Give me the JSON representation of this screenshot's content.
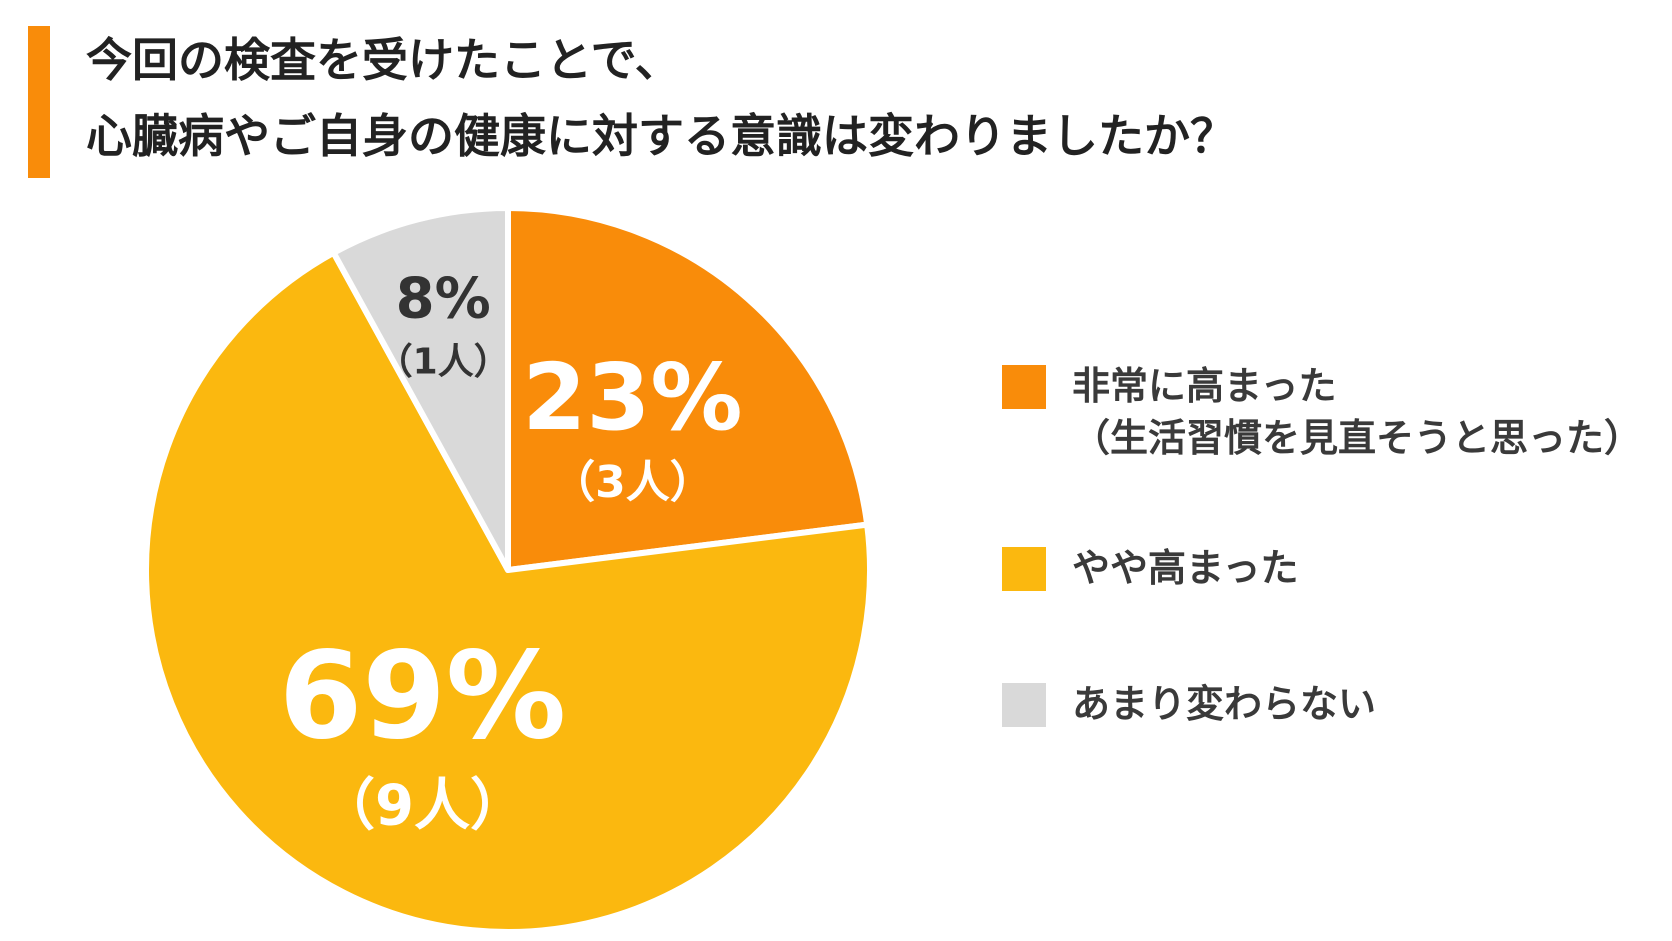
{
  "title": {
    "line1": "今回の検査を受けたことで、",
    "line2": "心臓病やご自身の健康に対する意識は変わりましたか？"
  },
  "colors": {
    "accent": "#F98C0A",
    "high": "#F98C0A",
    "somewhat": "#FBB80F",
    "unchanged": "#D9D9D9"
  },
  "chart_data": {
    "type": "pie",
    "slices": [
      {
        "name": "非常に高まった（生活習慣を見直そうと思った）",
        "value": 23,
        "count": 3,
        "pct_label": "23%",
        "count_label": "（3人）",
        "color": "#F98C0A",
        "label_color": "#ffffff"
      },
      {
        "name": "やや高まった",
        "value": 69,
        "count": 9,
        "pct_label": "69%",
        "count_label": "（9人）",
        "color": "#FBB80F",
        "label_color": "#ffffff"
      },
      {
        "name": "あまり変わらない",
        "value": 8,
        "count": 1,
        "pct_label": "8%",
        "count_label": "（1人）",
        "color": "#D9D9D9",
        "label_color": "#333333"
      }
    ],
    "legend_position": "right"
  },
  "legend": [
    {
      "line1": "非常に高まった",
      "line2": "（生活習慣を見直そうと思った）"
    },
    {
      "line1": "やや高まった",
      "line2": ""
    },
    {
      "line1": "あまり変わらない",
      "line2": ""
    }
  ]
}
